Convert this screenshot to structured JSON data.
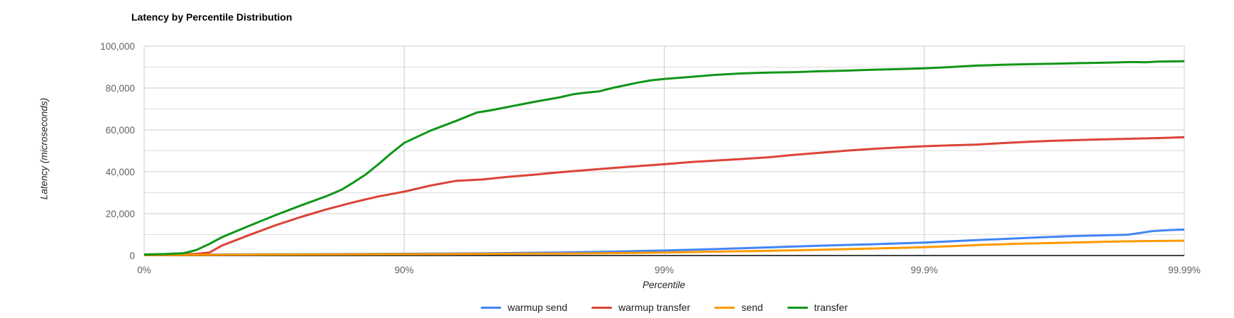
{
  "chart_data": {
    "type": "line",
    "title": "Latency by Percentile Distribution",
    "xlabel": "Percentile",
    "ylabel": "Latency (microseconds)",
    "x_scale": "log-percentile (0%..99.99%, evenly spaced decades)",
    "x_ticks": [
      "0%",
      "90%",
      "99%",
      "99.9%",
      "99.99%"
    ],
    "y_ticks": [
      0,
      20000,
      40000,
      60000,
      80000,
      100000
    ],
    "y_tick_labels": [
      "0",
      "20,000",
      "40,000",
      "60,000",
      "80,000",
      "100,000"
    ],
    "y_minor_step": 10000,
    "ylim": [
      0,
      100000
    ],
    "grid": true,
    "legend_position": "bottom",
    "series": [
      {
        "name": "warmup send",
        "color": "#4285f4",
        "points": [
          [
            0,
            300
          ],
          [
            0.3,
            500
          ],
          [
            0.6,
            650
          ],
          [
            1.0,
            850
          ],
          [
            1.3,
            1050
          ],
          [
            1.6,
            1450
          ],
          [
            1.8,
            1850
          ],
          [
            2.0,
            2400
          ],
          [
            2.2,
            3100
          ],
          [
            2.4,
            3900
          ],
          [
            2.6,
            4700
          ],
          [
            2.8,
            5400
          ],
          [
            3.0,
            6200
          ],
          [
            3.15,
            7100
          ],
          [
            3.3,
            7900
          ],
          [
            3.45,
            8700
          ],
          [
            3.6,
            9400
          ],
          [
            3.7,
            9700
          ],
          [
            3.78,
            9900
          ],
          [
            3.82,
            10600
          ],
          [
            3.88,
            11700
          ],
          [
            3.95,
            12200
          ],
          [
            4,
            12400
          ]
        ]
      },
      {
        "name": "warmup transfer",
        "color": "#db4437",
        "points": [
          [
            0,
            400
          ],
          [
            0.1,
            550
          ],
          [
            0.2,
            800
          ],
          [
            0.25,
            1400
          ],
          [
            0.3,
            4800
          ],
          [
            0.35,
            7200
          ],
          [
            0.4,
            9600
          ],
          [
            0.5,
            14200
          ],
          [
            0.6,
            18300
          ],
          [
            0.7,
            22000
          ],
          [
            0.8,
            25300
          ],
          [
            0.9,
            28200
          ],
          [
            1.0,
            30500
          ],
          [
            1.1,
            33400
          ],
          [
            1.2,
            35700
          ],
          [
            1.3,
            36300
          ],
          [
            1.4,
            37600
          ],
          [
            1.5,
            38600
          ],
          [
            1.6,
            39800
          ],
          [
            1.7,
            40800
          ],
          [
            1.8,
            41800
          ],
          [
            1.9,
            42700
          ],
          [
            2.0,
            43600
          ],
          [
            2.1,
            44600
          ],
          [
            2.2,
            45400
          ],
          [
            2.3,
            46100
          ],
          [
            2.4,
            46900
          ],
          [
            2.5,
            48100
          ],
          [
            2.6,
            49100
          ],
          [
            2.7,
            50100
          ],
          [
            2.8,
            50900
          ],
          [
            2.9,
            51600
          ],
          [
            3.0,
            52200
          ],
          [
            3.1,
            52600
          ],
          [
            3.2,
            53000
          ],
          [
            3.3,
            53700
          ],
          [
            3.4,
            54300
          ],
          [
            3.5,
            54800
          ],
          [
            3.6,
            55200
          ],
          [
            3.7,
            55500
          ],
          [
            3.8,
            55800
          ],
          [
            3.9,
            56100
          ],
          [
            4.0,
            56500
          ]
        ]
      },
      {
        "name": "send",
        "color": "#ff9900",
        "points": [
          [
            0,
            250
          ],
          [
            0.4,
            450
          ],
          [
            0.8,
            600
          ],
          [
            1.2,
            750
          ],
          [
            1.6,
            950
          ],
          [
            1.9,
            1250
          ],
          [
            2.0,
            1450
          ],
          [
            2.2,
            1850
          ],
          [
            2.4,
            2250
          ],
          [
            2.6,
            2750
          ],
          [
            2.8,
            3350
          ],
          [
            2.9,
            3650
          ],
          [
            3.0,
            4000
          ],
          [
            3.1,
            4450
          ],
          [
            3.2,
            5000
          ],
          [
            3.35,
            5600
          ],
          [
            3.5,
            6000
          ],
          [
            3.7,
            6600
          ],
          [
            3.85,
            6900
          ],
          [
            4,
            7100
          ]
        ]
      },
      {
        "name": "transfer",
        "color": "#109618",
        "points": [
          [
            0,
            500
          ],
          [
            0.08,
            700
          ],
          [
            0.15,
            1100
          ],
          [
            0.2,
            2600
          ],
          [
            0.25,
            5500
          ],
          [
            0.3,
            8800
          ],
          [
            0.4,
            14000
          ],
          [
            0.5,
            19000
          ],
          [
            0.6,
            23800
          ],
          [
            0.7,
            28300
          ],
          [
            0.76,
            31500
          ],
          [
            0.8,
            34500
          ],
          [
            0.85,
            38500
          ],
          [
            0.9,
            43500
          ],
          [
            0.95,
            48800
          ],
          [
            1.0,
            53800
          ],
          [
            1.1,
            59600
          ],
          [
            1.2,
            64300
          ],
          [
            1.28,
            68300
          ],
          [
            1.33,
            69300
          ],
          [
            1.4,
            71000
          ],
          [
            1.5,
            73400
          ],
          [
            1.6,
            75600
          ],
          [
            1.65,
            77000
          ],
          [
            1.7,
            77800
          ],
          [
            1.75,
            78400
          ],
          [
            1.8,
            80000
          ],
          [
            1.9,
            82600
          ],
          [
            1.95,
            83700
          ],
          [
            2.0,
            84300
          ],
          [
            2.1,
            85300
          ],
          [
            2.2,
            86300
          ],
          [
            2.3,
            87000
          ],
          [
            2.4,
            87400
          ],
          [
            2.5,
            87600
          ],
          [
            2.6,
            88000
          ],
          [
            2.7,
            88300
          ],
          [
            2.8,
            88700
          ],
          [
            2.9,
            89000
          ],
          [
            3.0,
            89400
          ],
          [
            3.1,
            90000
          ],
          [
            3.2,
            90700
          ],
          [
            3.3,
            91100
          ],
          [
            3.4,
            91400
          ],
          [
            3.5,
            91600
          ],
          [
            3.6,
            91900
          ],
          [
            3.7,
            92100
          ],
          [
            3.8,
            92400
          ],
          [
            3.85,
            92300
          ],
          [
            3.9,
            92600
          ],
          [
            4.0,
            92800
          ]
        ]
      }
    ]
  }
}
